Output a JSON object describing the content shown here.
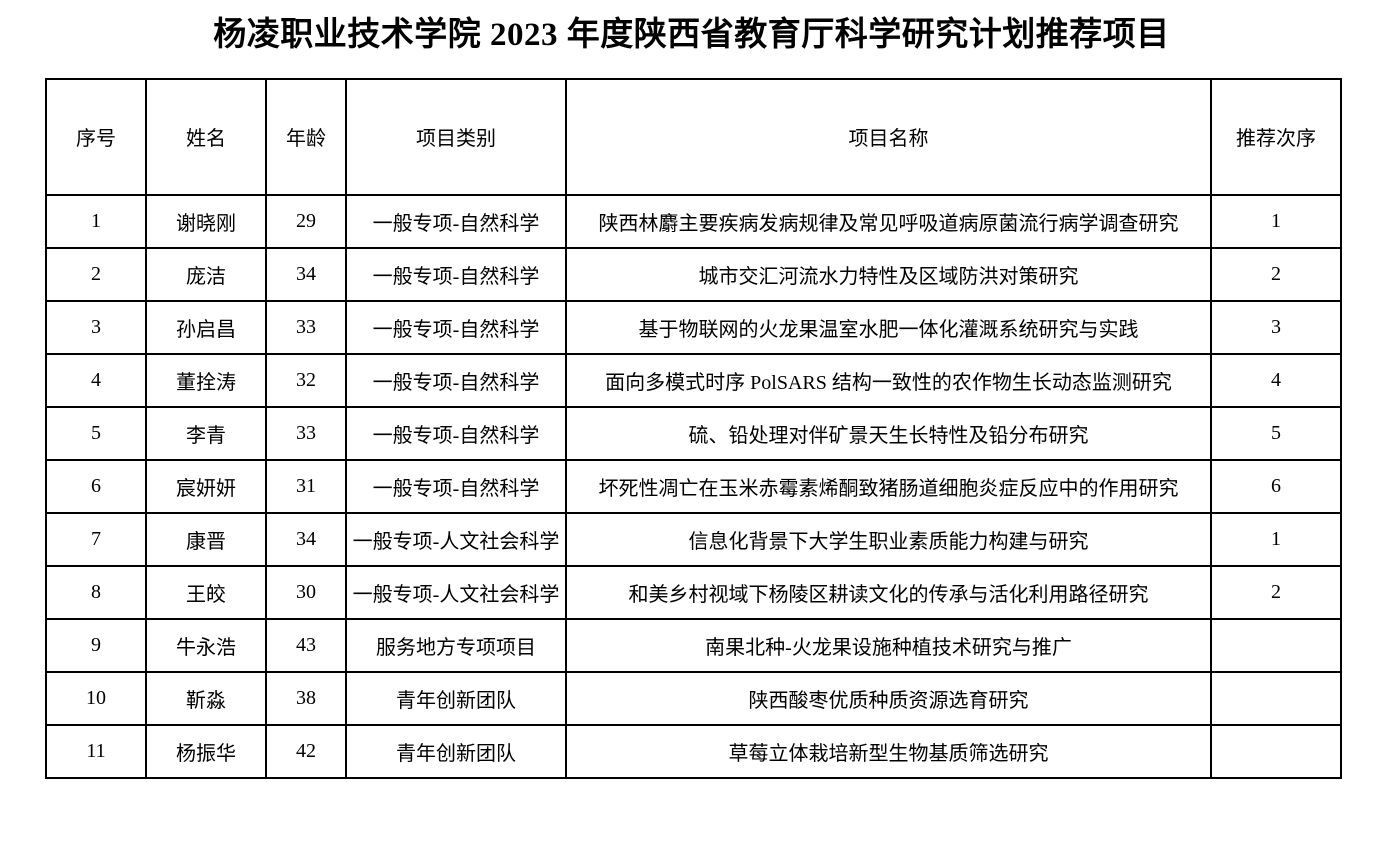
{
  "page": {
    "title": "杨凌职业技术学院 2023 年度陕西省教育厅科学研究计划推荐项目"
  },
  "table": {
    "columns": [
      "序号",
      "姓名",
      "年龄",
      "项目类别",
      "项目名称",
      "推荐次序"
    ],
    "rows": [
      {
        "no": "1",
        "name": "谢晓刚",
        "age": "29",
        "category": "一般专项-自然科学",
        "project": "陕西林麝主要疾病发病规律及常见呼吸道病原菌流行病学调查研究",
        "order": "1"
      },
      {
        "no": "2",
        "name": "庞洁",
        "age": "34",
        "category": "一般专项-自然科学",
        "project": "城市交汇河流水力特性及区域防洪对策研究",
        "order": "2"
      },
      {
        "no": "3",
        "name": "孙启昌",
        "age": "33",
        "category": "一般专项-自然科学",
        "project": "基于物联网的火龙果温室水肥一体化灌溉系统研究与实践",
        "order": "3"
      },
      {
        "no": "4",
        "name": "董拴涛",
        "age": "32",
        "category": "一般专项-自然科学",
        "project": "面向多模式时序 PolSARS 结构一致性的农作物生长动态监测研究",
        "order": "4"
      },
      {
        "no": "5",
        "name": "李青",
        "age": "33",
        "category": "一般专项-自然科学",
        "project": "硫、铅处理对伴矿景天生长特性及铅分布研究",
        "order": "5"
      },
      {
        "no": "6",
        "name": "宸妍妍",
        "age": "31",
        "category": "一般专项-自然科学",
        "project": "坏死性凋亡在玉米赤霉素烯酮致猪肠道细胞炎症反应中的作用研究",
        "order": "6"
      },
      {
        "no": "7",
        "name": "康晋",
        "age": "34",
        "category": "一般专项-人文社会科学",
        "project": "信息化背景下大学生职业素质能力构建与研究",
        "order": "1"
      },
      {
        "no": "8",
        "name": "王皎",
        "age": "30",
        "category": "一般专项-人文社会科学",
        "project": "和美乡村视域下杨陵区耕读文化的传承与活化利用路径研究",
        "order": "2"
      },
      {
        "no": "9",
        "name": "牛永浩",
        "age": "43",
        "category": "服务地方专项项目",
        "project": "南果北种-火龙果设施种植技术研究与推广",
        "order": ""
      },
      {
        "no": "10",
        "name": "靳淼",
        "age": "38",
        "category": "青年创新团队",
        "project": "陕西酸枣优质种质资源选育研究",
        "order": ""
      },
      {
        "no": "11",
        "name": "杨振华",
        "age": "42",
        "category": "青年创新团队",
        "project": "草莓立体栽培新型生物基质筛选研究",
        "order": ""
      }
    ]
  }
}
